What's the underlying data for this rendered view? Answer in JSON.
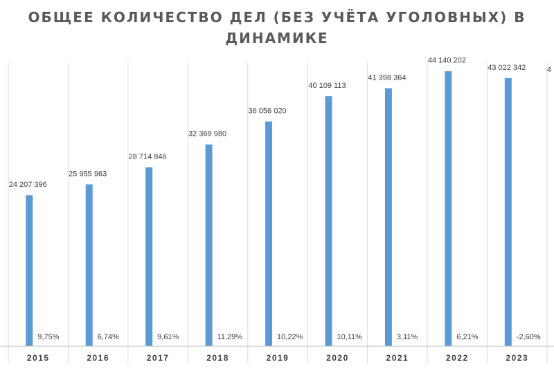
{
  "chart_data": {
    "type": "bar",
    "title_lines": [
      "ОБЩЕЕ КОЛИЧЕСТВО ДЕЛ (БЕЗ УЧЁТА УГОЛОВНЫХ) В",
      "ДИНАМИКЕ"
    ],
    "categories": [
      "2015",
      "2016",
      "2017",
      "2018",
      "2019",
      "2020",
      "2021",
      "2022",
      "2023"
    ],
    "series": [
      {
        "values": [
          24207396,
          25955963,
          28714846,
          32369980,
          36056020,
          40109113,
          41398364,
          44140202,
          43022342
        ],
        "value_labels": [
          "24 207 396",
          "25 955 963",
          "28 714 846",
          "32 369 980",
          "36 056 020",
          "40 109 113",
          "41 398 364",
          "44 140 202",
          "43 022 342"
        ]
      }
    ],
    "growth_labels": [
      "9,75%",
      "6,74%",
      "9,61%",
      "11,29%",
      "10,22%",
      "10,11%",
      "3,11%",
      "6,21%",
      "-2,60%"
    ],
    "secondary_axis_partial_label": "4",
    "ylim": [
      0,
      50000000
    ],
    "grid": true,
    "bar_color": "#5b9bd5",
    "xlabel": "",
    "ylabel": ""
  }
}
